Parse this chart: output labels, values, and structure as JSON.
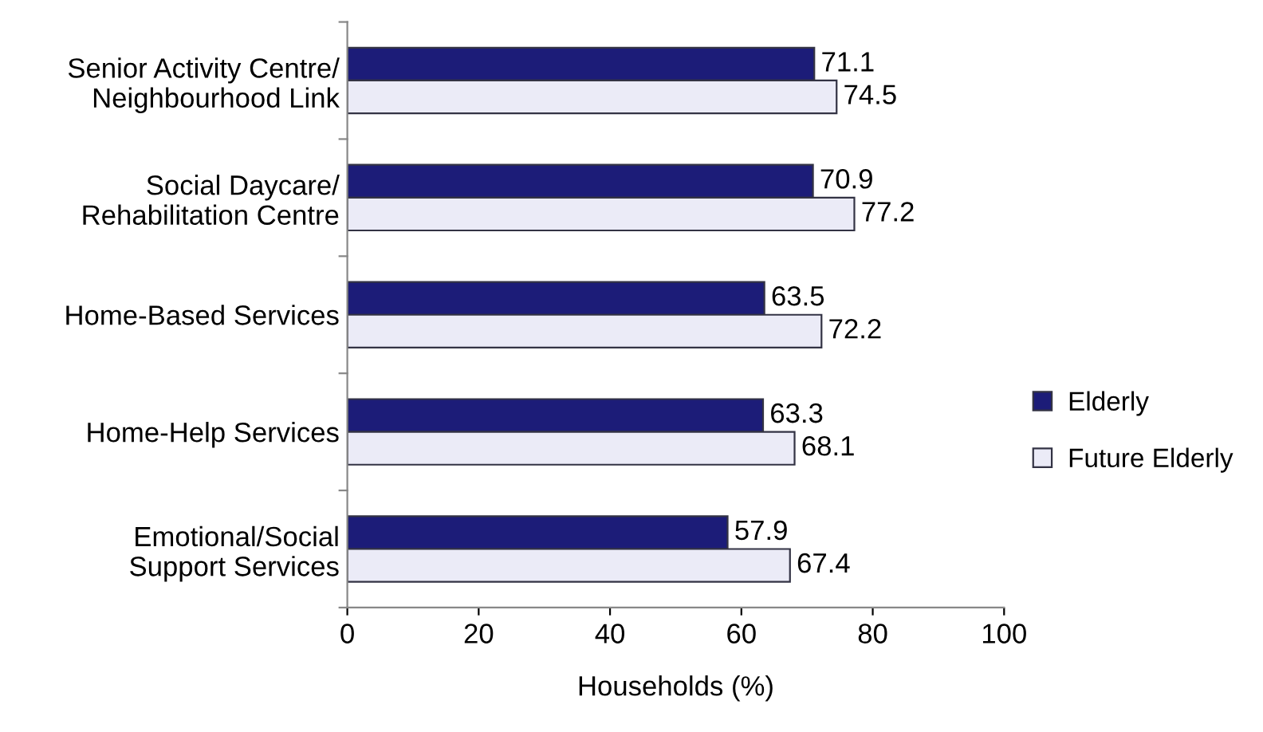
{
  "chart_data": {
    "type": "bar",
    "orientation": "horizontal",
    "xlabel": "Households (%)",
    "categories": [
      "Senior Activity Centre/\nNeighbourhood Link",
      "Social Daycare/\nRehabilitation Centre",
      "Home-Based Services",
      "Home-Help Services",
      "Emotional/Social\nSupport Services"
    ],
    "series": [
      {
        "name": "Elderly",
        "color": "#1c1c78",
        "values": [
          71.1,
          70.9,
          63.5,
          63.3,
          57.9
        ]
      },
      {
        "name": "Future Elderly",
        "color": "#ebebf7",
        "values": [
          74.5,
          77.2,
          72.2,
          68.1,
          67.4
        ]
      }
    ],
    "xlim": [
      0,
      100
    ],
    "xticks": [
      0,
      20,
      40,
      60,
      80,
      100
    ],
    "data_labels": true,
    "legend": "right",
    "grid": false
  }
}
